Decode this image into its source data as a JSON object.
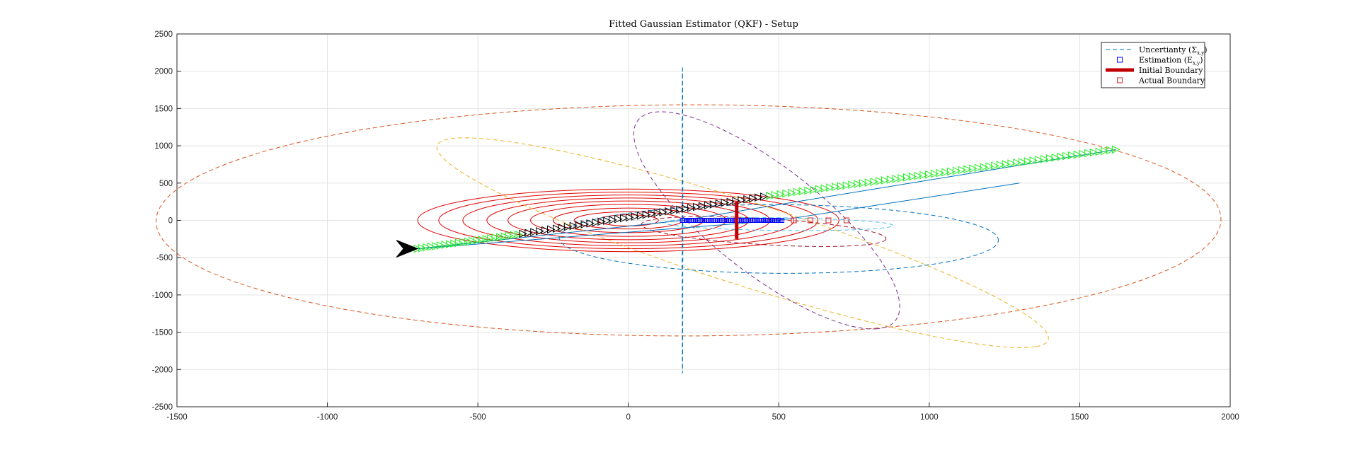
{
  "chart_data": {
    "type": "line",
    "title": "Fitted Gaussian Estimator (QKF) - Setup",
    "xlabel": "",
    "ylabel": "",
    "xlim": [
      -1500,
      2000
    ],
    "ylim": [
      -2500,
      2500
    ],
    "x_ticks": [
      -1500,
      -1000,
      -500,
      0,
      500,
      1000,
      1500,
      2000
    ],
    "y_ticks": [
      -2500,
      -2000,
      -1500,
      -1000,
      -500,
      0,
      500,
      1000,
      1500,
      2000,
      2500
    ],
    "grid": true,
    "legend_position": "top-right",
    "legend": [
      {
        "label": "Uncertianty",
        "math": "(Σ",
        "sub": "x,y",
        "close": ")",
        "style": "dashed-line",
        "color": "#0072bd"
      },
      {
        "label": "Estimation",
        "math": "(E",
        "sub": "x,y",
        "close": ")",
        "style": "square-marker",
        "color": "#0000ff"
      },
      {
        "label": "Initial Boundary",
        "math": "",
        "sub": "",
        "close": "",
        "style": "thick-line",
        "color": "#c00000"
      },
      {
        "label": "Actual Boundary",
        "math": "",
        "sub": "",
        "close": "",
        "style": "square-marker",
        "color": "#e02020"
      }
    ],
    "contour_ellipses": {
      "color": "#e00000",
      "center": [
        0,
        0
      ],
      "semi_axes": [
        [
          100,
          75
        ],
        [
          180,
          115
        ],
        [
          250,
          165
        ],
        [
          325,
          215
        ],
        [
          400,
          260
        ],
        [
          470,
          300
        ],
        [
          550,
          340
        ],
        [
          630,
          380
        ],
        [
          700,
          420
        ]
      ]
    },
    "uncertainty_ellipses": [
      {
        "color": "#0072bd",
        "center": [
          500,
          -250
        ],
        "rx": 730,
        "ry": 460,
        "angle_deg": -2
      },
      {
        "color": "#d95319",
        "center": [
          200,
          0
        ],
        "rx": 1550,
        "ry": 1770,
        "angle_deg": -88
      },
      {
        "color": "#edb120",
        "center": [
          380,
          -300
        ],
        "rx": 1700,
        "ry": 350,
        "angle_deg": -55
      },
      {
        "color": "#7e2f8e",
        "center": [
          460,
          0
        ],
        "rx": 1500,
        "ry": 260,
        "angle_deg": -76
      },
      {
        "color": "#a2142f",
        "center": [
          450,
          -150
        ],
        "rx": 420,
        "ry": 170,
        "angle_deg": -16
      },
      {
        "color": "#4dbeee",
        "center": [
          500,
          -50
        ],
        "rx": 380,
        "ry": 85,
        "angle_deg": -3
      },
      {
        "color": "#0072bd",
        "center": [
          180,
          0
        ],
        "rx": 2050,
        "ry": 1,
        "angle_deg": 90
      }
    ],
    "trajectory_line": {
      "color": "#0072bd",
      "points": [
        [
          -700,
          -380
        ],
        [
          180,
          0
        ],
        [
          1620,
          950
        ]
      ]
    },
    "trajectory_branch": {
      "color": "#0072bd",
      "points": [
        [
          -700,
          -380
        ],
        [
          500,
          0
        ],
        [
          1300,
          500
        ]
      ]
    },
    "black_triangles": {
      "from": [
        -350,
        -180
      ],
      "to": [
        470,
        330
      ],
      "count": 45,
      "color": "#000000"
    },
    "green_triangles_left": {
      "from": [
        -700,
        -380
      ],
      "to": [
        -350,
        -180
      ],
      "count": 24,
      "color": "#22ee22"
    },
    "green_triangles_right": {
      "from": [
        470,
        330
      ],
      "to": [
        1620,
        950
      ],
      "count": 64,
      "color": "#22ee22"
    },
    "start_arrow": {
      "at": [
        -700,
        -380
      ],
      "color": "#000000"
    },
    "estimation_markers": {
      "x_from": 180,
      "x_to": 510,
      "count": 55,
      "y": 0,
      "color": "#0000ff"
    },
    "actual_boundary_markers": {
      "x": [
        550,
        605,
        665,
        725
      ],
      "y": 0,
      "color": "#e02020"
    },
    "initial_boundary": {
      "x": 360,
      "y_from": -250,
      "y_to": 250,
      "color": "#c00000"
    }
  }
}
